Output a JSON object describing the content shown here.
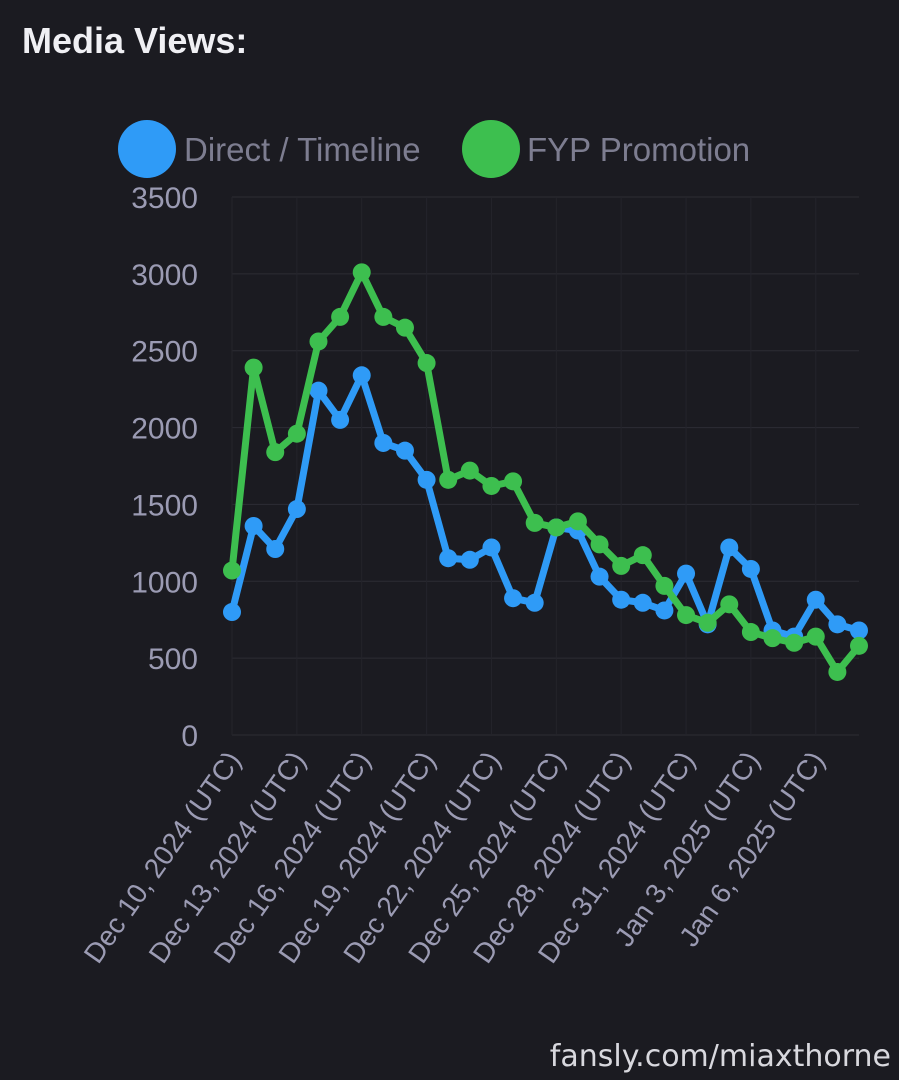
{
  "header": {
    "title": "Media Views:"
  },
  "watermark": {
    "text": "fansly.com/miaxthorne"
  },
  "chart_data": {
    "type": "line",
    "title": "",
    "xlabel": "",
    "ylabel": "",
    "ylim": [
      0,
      3500
    ],
    "yticks": [
      "0",
      "500",
      "1000",
      "1500",
      "2000",
      "2500",
      "3000",
      "3500"
    ],
    "y_tick_values": [
      0,
      500,
      1000,
      1500,
      2000,
      2500,
      3000,
      3500
    ],
    "grid": true,
    "legend_position": "top",
    "x": [
      "Dec 10, 2024 (UTC)",
      "Dec 11, 2024 (UTC)",
      "Dec 12, 2024 (UTC)",
      "Dec 13, 2024 (UTC)",
      "Dec 14, 2024 (UTC)",
      "Dec 15, 2024 (UTC)",
      "Dec 16, 2024 (UTC)",
      "Dec 17, 2024 (UTC)",
      "Dec 18, 2024 (UTC)",
      "Dec 19, 2024 (UTC)",
      "Dec 20, 2024 (UTC)",
      "Dec 21, 2024 (UTC)",
      "Dec 22, 2024 (UTC)",
      "Dec 23, 2024 (UTC)",
      "Dec 24, 2024 (UTC)",
      "Dec 25, 2024 (UTC)",
      "Dec 26, 2024 (UTC)",
      "Dec 27, 2024 (UTC)",
      "Dec 28, 2024 (UTC)",
      "Dec 29, 2024 (UTC)",
      "Dec 30, 2024 (UTC)",
      "Dec 31, 2024 (UTC)",
      "Jan 1, 2025 (UTC)",
      "Jan 2, 2025 (UTC)",
      "Jan 3, 2025 (UTC)",
      "Jan 4, 2025 (UTC)",
      "Jan 5, 2025 (UTC)",
      "Jan 6, 2025 (UTC)",
      "Jan 7, 2025 (UTC)",
      "Jan 8, 2025 (UTC)"
    ],
    "x_tick_labels": [
      "Dec 10, 2024 (UTC)",
      "Dec 13, 2024 (UTC)",
      "Dec 16, 2024 (UTC)",
      "Dec 19, 2024 (UTC)",
      "Dec 22, 2024 (UTC)",
      "Dec 25, 2024 (UTC)",
      "Dec 28, 2024 (UTC)",
      "Dec 31, 2024 (UTC)",
      "Jan 3, 2025 (UTC)",
      "Jan 6, 2025 (UTC)"
    ],
    "series": [
      {
        "name": "Direct / Timeline",
        "color": "#2f9bf7",
        "values": [
          800,
          1360,
          1210,
          1470,
          2240,
          2050,
          2340,
          1900,
          1850,
          1660,
          1150,
          1140,
          1220,
          890,
          860,
          1350,
          1330,
          1030,
          880,
          860,
          810,
          1050,
          720,
          1220,
          1080,
          680,
          640,
          880,
          720,
          680
        ]
      },
      {
        "name": "FYP Promotion",
        "color": "#3dbf4f",
        "values": [
          1070,
          2390,
          1840,
          1960,
          2560,
          2720,
          3010,
          2720,
          2650,
          2420,
          1660,
          1720,
          1620,
          1650,
          1380,
          1350,
          1390,
          1240,
          1100,
          1170,
          970,
          780,
          730,
          850,
          670,
          630,
          600,
          640,
          410,
          580
        ]
      }
    ]
  }
}
